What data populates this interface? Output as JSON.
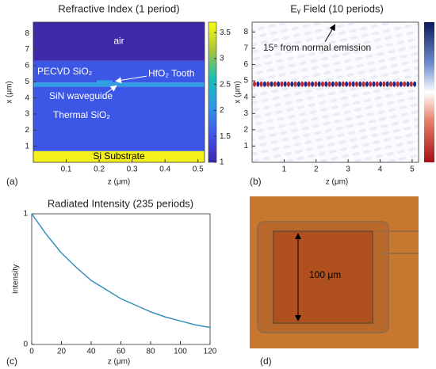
{
  "chart_data": [
    {
      "type": "layers",
      "title": "Refractive Index (1 period)",
      "panel_label": "(a)",
      "xlabel": "z (μm)",
      "ylabel": "x (μm)",
      "xlim": [
        0,
        0.52
      ],
      "ylim": [
        0,
        8.7
      ],
      "xticks": [
        0.1,
        0.2,
        0.3,
        0.4,
        0.5
      ],
      "yticks": [
        1,
        2,
        3,
        4,
        5,
        6,
        7,
        8
      ],
      "clim": [
        1,
        3.7
      ],
      "cticks": [
        1,
        1.5,
        2,
        2.5,
        3,
        3.5
      ],
      "layers": [
        {
          "name": "Si Substrate",
          "range": [
            0,
            0.7
          ],
          "color": "#f5f11a"
        },
        {
          "name": "Thermal SiO₂",
          "range": [
            0.7,
            4.7
          ],
          "color": "#3c56e6"
        },
        {
          "name": "SiN waveguide",
          "range": [
            4.7,
            4.95
          ],
          "color": "#2ea0e2"
        },
        {
          "name": "PECVD SiO₂",
          "range": [
            4.95,
            6.3
          ],
          "color": "#3c56e6"
        },
        {
          "name": "air",
          "range": [
            6.3,
            8.7
          ],
          "color": "#3f28aa"
        }
      ],
      "annotations": [
        "HfO₂ Tooth"
      ]
    },
    {
      "type": "field",
      "title": "Eᵧ Field (10 periods)",
      "panel_label": "(b)",
      "xlabel": "z (μm)",
      "ylabel": "x (μm)",
      "xlim": [
        0,
        5.2
      ],
      "ylim": [
        0,
        8.6
      ],
      "xticks": [
        1,
        2,
        3,
        4,
        5
      ],
      "yticks": [
        1,
        2,
        3,
        4,
        5,
        6,
        7,
        8
      ],
      "mode_center": 4.8,
      "annotations": [
        "15° from normal emission"
      ]
    },
    {
      "type": "line",
      "title": "Radiated Intensity (235 periods)",
      "panel_label": "(c)",
      "xlabel": "z (μm)",
      "ylabel": "Intensity",
      "xlim": [
        0,
        120
      ],
      "ylim": [
        0,
        1
      ],
      "xticks": [
        0,
        20,
        40,
        60,
        80,
        100,
        120
      ],
      "yticks": [
        0,
        1
      ],
      "color": "#3a8fc0",
      "x": [
        0,
        10,
        20,
        30,
        40,
        50,
        60,
        70,
        80,
        90,
        100,
        110,
        120
      ],
      "values": [
        1,
        0.84,
        0.7,
        0.59,
        0.49,
        0.42,
        0.35,
        0.3,
        0.25,
        0.21,
        0.18,
        0.15,
        0.13
      ]
    },
    {
      "type": "photo",
      "panel_label": "(d)",
      "annotations": [
        "100 μm"
      ]
    }
  ]
}
